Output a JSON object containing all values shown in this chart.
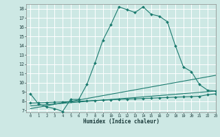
{
  "title": "",
  "xlabel": "Humidex (Indice chaleur)",
  "ylabel": "",
  "xlim": [
    -0.5,
    23
  ],
  "ylim": [
    6.8,
    18.5
  ],
  "yticks": [
    7,
    8,
    9,
    10,
    11,
    12,
    13,
    14,
    15,
    16,
    17,
    18
  ],
  "xticks": [
    0,
    1,
    2,
    3,
    4,
    5,
    6,
    7,
    8,
    9,
    10,
    11,
    12,
    13,
    14,
    15,
    16,
    17,
    18,
    19,
    20,
    21,
    22,
    23
  ],
  "bg_color": "#cde8e4",
  "grid_color": "#ffffff",
  "line_color": "#1a7a6e",
  "lines": [
    {
      "x": [
        0,
        1,
        2,
        3,
        4,
        5,
        6,
        7,
        8,
        9,
        10,
        11,
        12,
        13,
        14,
        15,
        16,
        17,
        18,
        19,
        20,
        21,
        22,
        23
      ],
      "y": [
        8.8,
        7.7,
        7.4,
        7.2,
        6.9,
        8.2,
        8.2,
        9.8,
        12.1,
        14.6,
        16.3,
        18.2,
        17.9,
        17.6,
        18.2,
        17.4,
        17.2,
        16.6,
        14.0,
        11.7,
        11.2,
        9.8,
        9.2,
        9.1
      ],
      "marker": true
    },
    {
      "x": [
        0,
        1,
        2,
        3,
        4,
        5,
        6,
        7,
        8,
        9,
        10,
        11,
        12,
        13,
        14,
        15,
        16,
        17,
        18,
        19,
        20,
        21,
        22,
        23
      ],
      "y": [
        7.8,
        7.83,
        7.87,
        7.9,
        7.93,
        7.96,
        8.0,
        8.04,
        8.08,
        8.12,
        8.16,
        8.2,
        8.23,
        8.26,
        8.3,
        8.33,
        8.37,
        8.4,
        8.44,
        8.47,
        8.5,
        8.54,
        8.7,
        8.8
      ],
      "marker": true
    },
    {
      "x": [
        0,
        23
      ],
      "y": [
        7.5,
        9.1
      ],
      "marker": false
    },
    {
      "x": [
        0,
        23
      ],
      "y": [
        7.2,
        10.8
      ],
      "marker": false
    }
  ]
}
